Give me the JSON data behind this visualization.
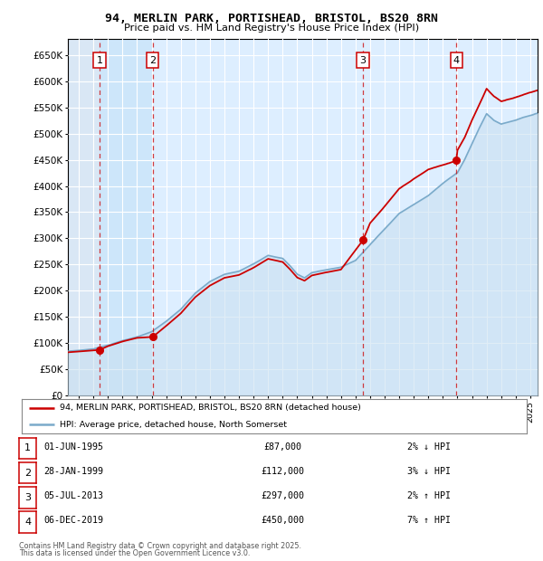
{
  "title_line1": "94, MERLIN PARK, PORTISHEAD, BRISTOL, BS20 8RN",
  "title_line2": "Price paid vs. HM Land Registry's House Price Index (HPI)",
  "ylim": [
    0,
    680000
  ],
  "yticks": [
    0,
    50000,
    100000,
    150000,
    200000,
    250000,
    300000,
    350000,
    400000,
    450000,
    500000,
    550000,
    600000,
    650000
  ],
  "ytick_labels": [
    "£0",
    "£50K",
    "£100K",
    "£150K",
    "£200K",
    "£250K",
    "£300K",
    "£350K",
    "£400K",
    "£450K",
    "£500K",
    "£550K",
    "£600K",
    "£650K"
  ],
  "xlim_start": 1993.25,
  "xlim_end": 2025.5,
  "sales": [
    {
      "num": 1,
      "date_str": "01-JUN-1995",
      "year": 1995.42,
      "price": 87000
    },
    {
      "num": 2,
      "date_str": "28-JAN-1999",
      "year": 1999.08,
      "price": 112000
    },
    {
      "num": 3,
      "date_str": "05-JUL-2013",
      "year": 2013.51,
      "price": 297000
    },
    {
      "num": 4,
      "date_str": "06-DEC-2019",
      "year": 2019.93,
      "price": 450000
    }
  ],
  "legend_line1": "94, MERLIN PARK, PORTISHEAD, BRISTOL, BS20 8RN (detached house)",
  "legend_line2": "HPI: Average price, detached house, North Somerset",
  "footer_line1": "Contains HM Land Registry data © Crown copyright and database right 2025.",
  "footer_line2": "This data is licensed under the Open Government Licence v3.0.",
  "red_color": "#cc0000",
  "blue_fill_color": "#c8dff0",
  "blue_line_color": "#7aaaca",
  "background_color": "#ffffff",
  "plot_bg_color": "#ddeeff",
  "grid_color": "#ffffff",
  "table_rows": [
    {
      "num": "1",
      "date": "01-JUN-1995",
      "price": "£87,000",
      "pct_hpi": "2% ↓ HPI"
    },
    {
      "num": "2",
      "date": "28-JAN-1999",
      "price": "£112,000",
      "pct_hpi": "3% ↓ HPI"
    },
    {
      "num": "3",
      "date": "05-JUL-2013",
      "price": "£297,000",
      "pct_hpi": "2% ↑ HPI"
    },
    {
      "num": "4",
      "date": "06-DEC-2019",
      "price": "£450,000",
      "pct_hpi": "7% ↑ HPI"
    }
  ]
}
